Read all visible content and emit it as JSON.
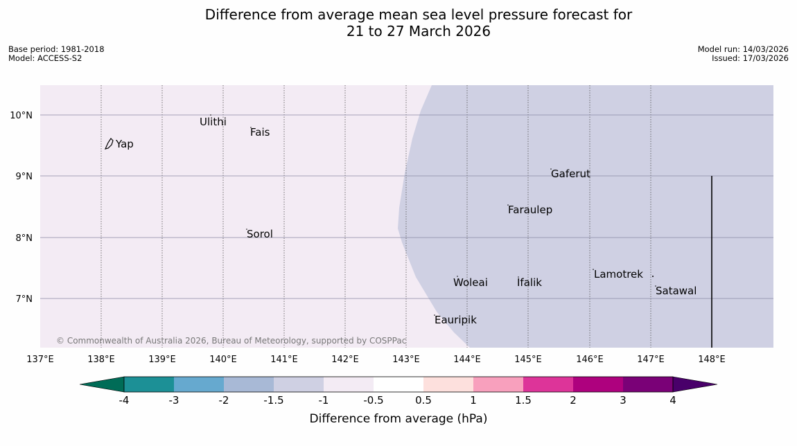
{
  "title": {
    "line1": "Difference from average mean sea level pressure forecast for",
    "line2": "21 to 27 March 2026"
  },
  "meta": {
    "base_period": "Base period: 1981-2018",
    "model": "Model: ACCESS-S2",
    "model_run": "Model run: 14/03/2026",
    "issued": "Issued: 17/03/2026"
  },
  "map": {
    "lon_ticks": [
      "137°E",
      "138°E",
      "139°E",
      "140°E",
      "141°E",
      "142°E",
      "143°E",
      "144°E",
      "145°E",
      "146°E",
      "147°E",
      "148°E"
    ],
    "lat_ticks": [
      "10°N",
      "9°N",
      "8°N",
      "7°N"
    ],
    "places": [
      {
        "name": "Yap"
      },
      {
        "name": "Ulithi"
      },
      {
        "name": "Fais"
      },
      {
        "name": "Sorol"
      },
      {
        "name": "Gaferut"
      },
      {
        "name": "Faraulep"
      },
      {
        "name": "Woleai"
      },
      {
        "name": "Ifalik"
      },
      {
        "name": "Lamotrek"
      },
      {
        "name": "Satawal"
      },
      {
        "name": "Eauripik"
      }
    ],
    "copyright": "© Commonwealth of Australia 2026, Bureau of Meteorology, supported by COSPPac",
    "colors": {
      "neg_1_5_to_1": "#cfd0e3",
      "neg_1_to_0_5": "#f3ebf4"
    }
  },
  "colorbar": {
    "ticks": [
      "-4",
      "-3",
      "-2",
      "-1.5",
      "-1",
      "-0.5",
      "0.5",
      "1",
      "1.5",
      "2",
      "3",
      "4"
    ],
    "label": "Difference from average (hPa)",
    "colors": [
      "#006c57",
      "#1c9096",
      "#66a9cf",
      "#a8b9d6",
      "#cfd0e3",
      "#f3ebf4",
      "#ffffff",
      "#fde0dd",
      "#f8a0bd",
      "#dd3499",
      "#ae017e",
      "#7a0177",
      "#49006a"
    ]
  }
}
